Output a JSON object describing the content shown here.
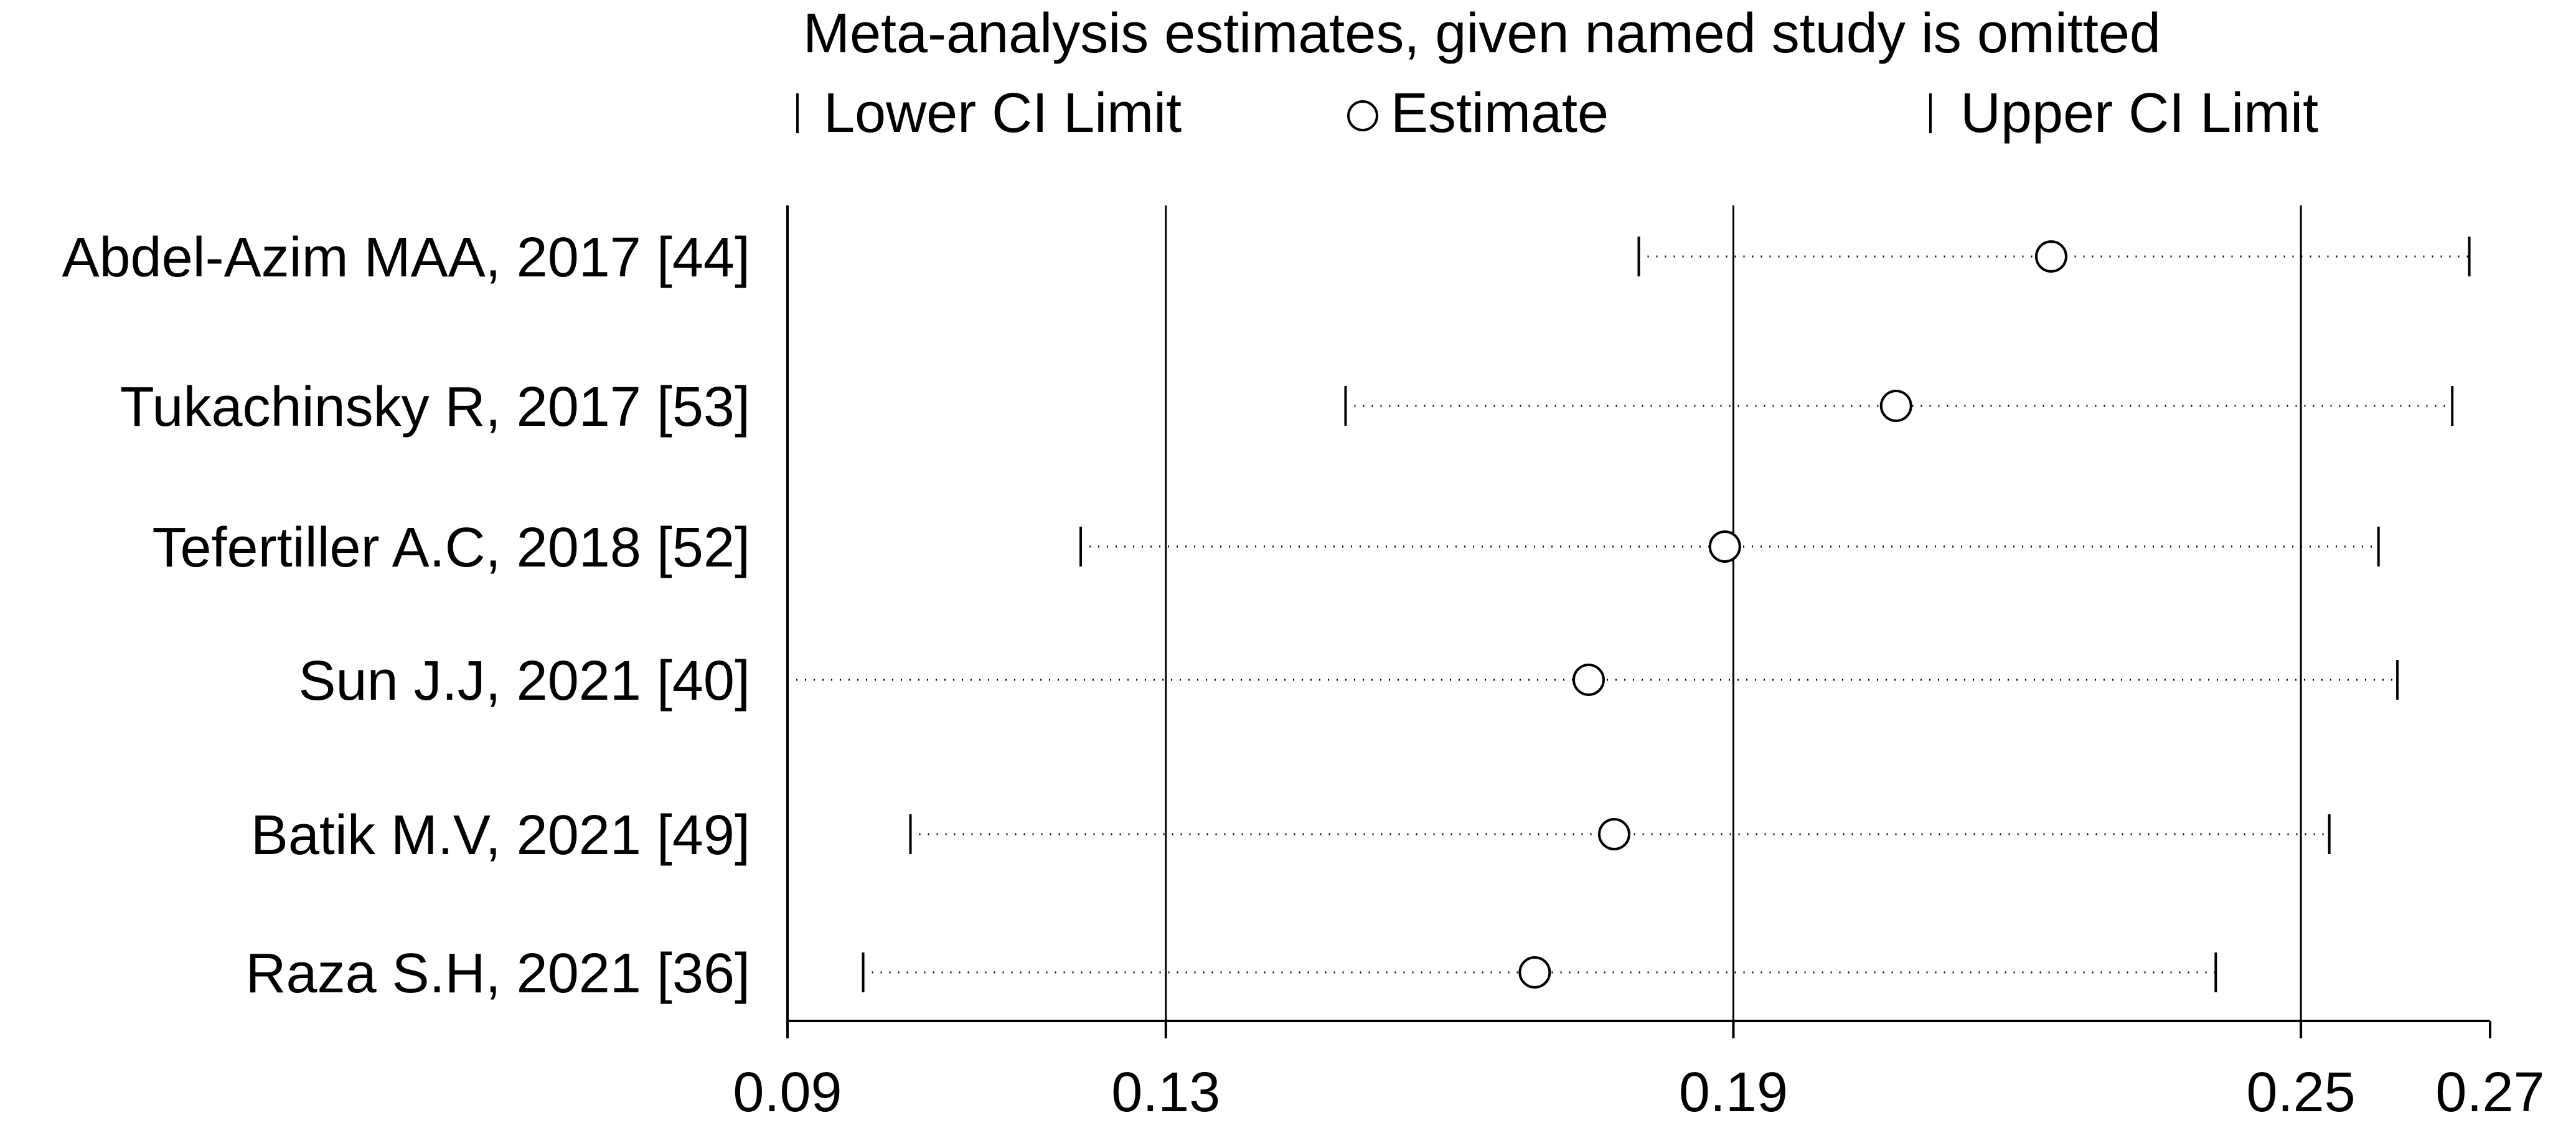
{
  "chart_data": {
    "type": "forest",
    "title": "Meta-analysis estimates, given named study is omitted",
    "legend": {
      "placement": "top",
      "items": [
        {
          "key": "lower",
          "label": "Lower CI Limit",
          "symbol": "tick"
        },
        {
          "key": "estimate",
          "label": "Estimate",
          "symbol": "circle"
        },
        {
          "key": "upper",
          "label": "Upper CI Limit",
          "symbol": "tick"
        }
      ]
    },
    "xlim": [
      0.09,
      0.27
    ],
    "x_ticks": [
      0.09,
      0.13,
      0.19,
      0.25,
      0.27
    ],
    "x_tick_labels": [
      "0.09",
      "0.13",
      "0.19",
      "0.25",
      "0.27"
    ],
    "reference_lines": [
      0.13,
      0.19,
      0.25
    ],
    "grid": false,
    "studies": [
      {
        "label": "Abdel-Azim MAA, 2017  [44]",
        "lower": 0.18,
        "estimate": 0.2236,
        "upper": 0.2678
      },
      {
        "label": "Tukachinsky R, 2017 [53]",
        "lower": 0.149,
        "estimate": 0.2072,
        "upper": 0.266
      },
      {
        "label": "Tefertiller A.C, 2018 [52]",
        "lower": 0.121,
        "estimate": 0.1891,
        "upper": 0.2582
      },
      {
        "label": "Sun J.J, 2021 [40]",
        "lower": 0.09,
        "estimate": 0.1747,
        "upper": 0.2602
      },
      {
        "label": "Batik M.V, 2021 [49]",
        "lower": 0.103,
        "estimate": 0.1774,
        "upper": 0.253
      },
      {
        "label": "Raza S.H, 2021 [36]",
        "lower": 0.098,
        "estimate": 0.169,
        "upper": 0.241
      }
    ]
  }
}
